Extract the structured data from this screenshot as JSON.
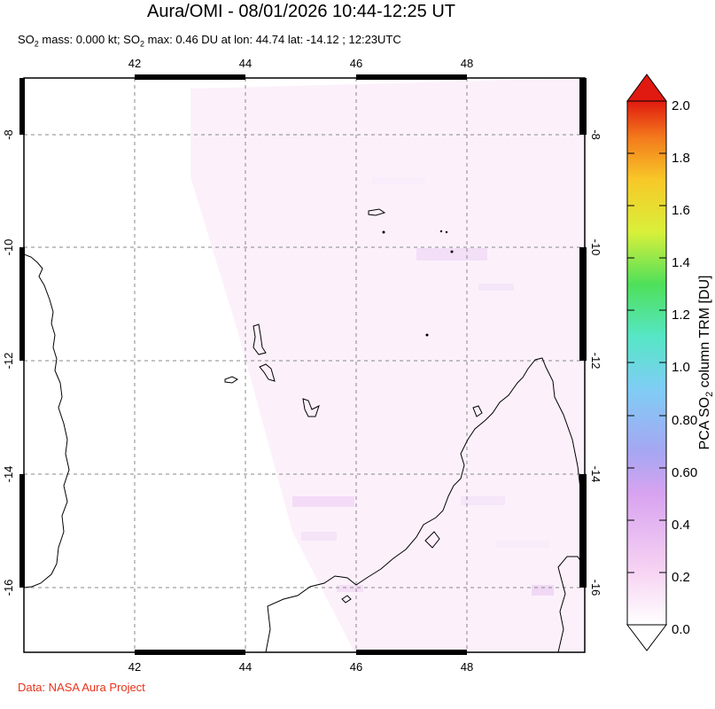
{
  "title": "Aura/OMI - 08/01/2026 10:44-12:25 UT",
  "subtitle": {
    "so2_prefix": "SO",
    "so2_sub": "2",
    "mass_text": " mass: 0.000 kt; SO",
    "max_sub": "2",
    "max_text": " max: 0.46 DU at lon: 44.74 lat: -14.12 ; 12:23UTC"
  },
  "credit": "Data: NASA Aura Project",
  "map": {
    "lon_ticks": [
      "42",
      "44",
      "46",
      "48"
    ],
    "lat_ticks": [
      "-8",
      "-10",
      "-12",
      "-14",
      "-16"
    ],
    "lon_range": [
      40.0,
      50.0
    ],
    "lat_range": [
      -17.2,
      -6.9
    ],
    "grid": "dashed",
    "land_outline": "black coastline"
  },
  "colorbar": {
    "label": "PCA SO2 column TRM [DU]",
    "label_main": "PCA SO",
    "label_sub": "2",
    "label_end": " column TRM [DU]",
    "ticks": [
      "2.0",
      "1.8",
      "1.6",
      "1.4",
      "1.2",
      "1.0",
      "0.80",
      "0.60",
      "0.4",
      "0.2",
      "0.0"
    ],
    "range": [
      0.0,
      2.0
    ],
    "colors": [
      "#ffffff",
      "#f7d4f3",
      "#d8a3f0",
      "#a6a6f2",
      "#7fcdf5",
      "#56e6c6",
      "#4fe05a",
      "#d9f03a",
      "#f8c828",
      "#f37a1c",
      "#e01a10"
    ]
  }
}
